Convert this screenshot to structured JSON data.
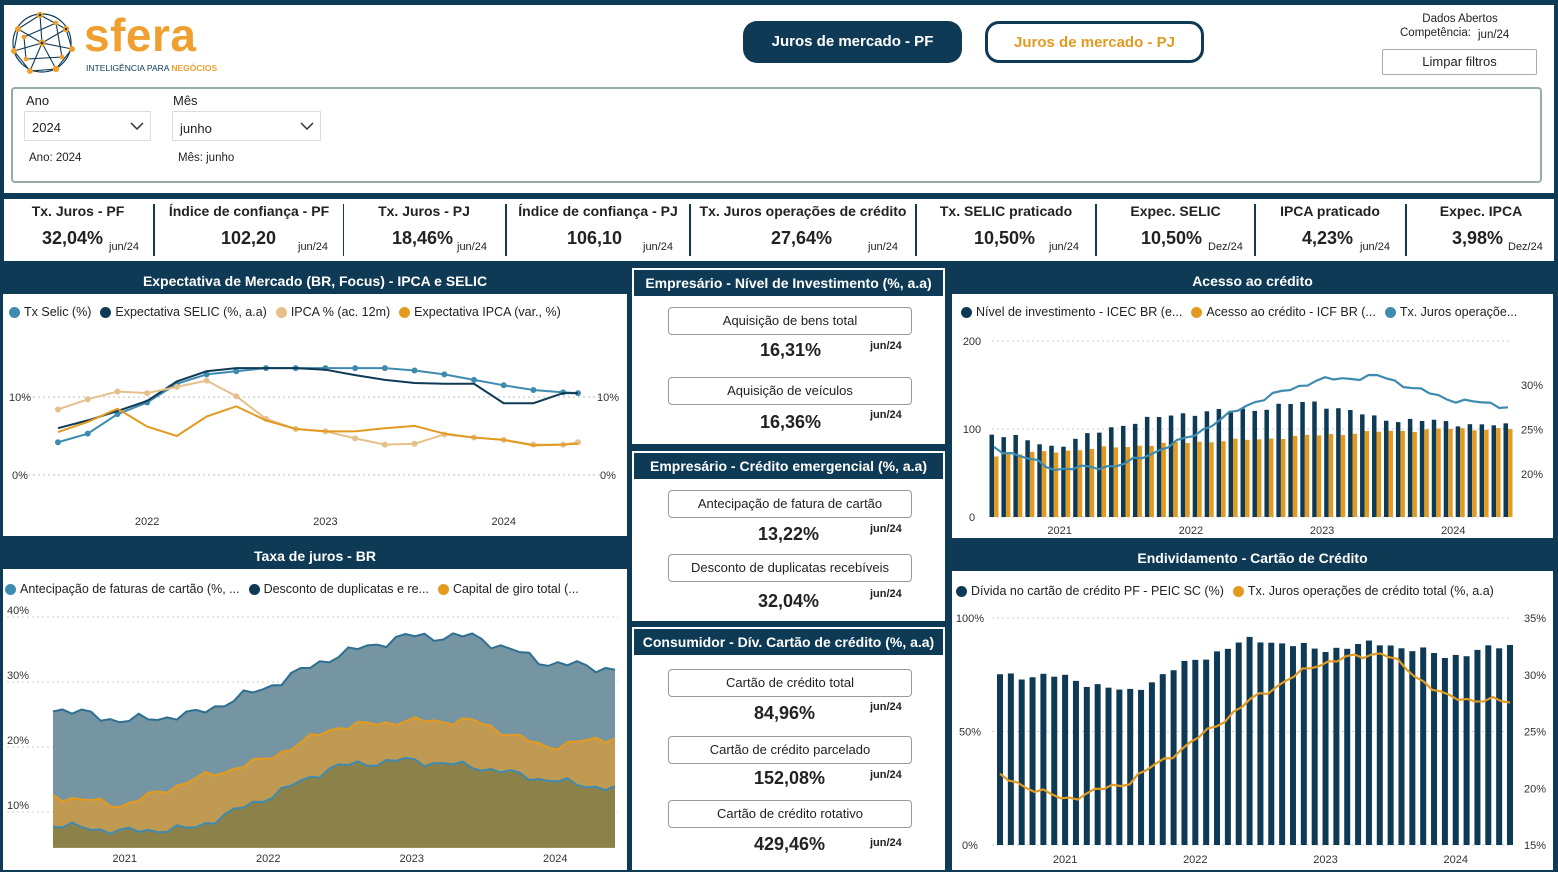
{
  "brand": {
    "name": "sfera",
    "tagline_a": "INTELIGÊNCIA PARA ",
    "tagline_b": "NEGÓCIOS"
  },
  "nav": {
    "pf": "Juros de mercado - PF",
    "pj": "Juros de mercado - PJ"
  },
  "info": {
    "source": "Dados Abertos",
    "competence_label": "Competência:",
    "competence_value": "jun/24",
    "clear": "Limpar filtros"
  },
  "filters": {
    "year_label": "Ano",
    "year_value": "2024",
    "year_note": "Ano: 2024",
    "month_label": "Mês",
    "month_value": "junho",
    "month_note": "Mês: junho"
  },
  "kpis": [
    {
      "title": "Tx. Juros - PF",
      "value": "32,04%",
      "date": "jun/24"
    },
    {
      "title": "Índice de confiança - PF",
      "value": "102,20",
      "date": "jun/24"
    },
    {
      "title": "Tx. Juros - PJ",
      "value": "18,46%",
      "date": "jun/24"
    },
    {
      "title": "Índice de confiança - PJ",
      "value": "106,10",
      "date": "jun/24"
    },
    {
      "title": "Tx. Juros operações de crédito",
      "value": "27,64%",
      "date": "jun/24"
    },
    {
      "title": "Tx. SELIC praticado",
      "value": "10,50%",
      "date": "jun/24"
    },
    {
      "title": "Expec. SELIC",
      "value": "10,50%",
      "date": "Dez/24"
    },
    {
      "title": "IPCA praticado",
      "value": "4,23%",
      "date": "jun/24"
    },
    {
      "title": "Expec. IPCA",
      "value": "3,98%",
      "date": "Dez/24"
    }
  ],
  "middle": {
    "invest": {
      "title": "Empresário - Nível de Investimento (%, a.a)",
      "cards": [
        {
          "label": "Aquisição de bens total",
          "value": "16,31%",
          "date": "jun/24"
        },
        {
          "label": "Aquisição de veículos",
          "value": "16,36%",
          "date": "jun/24"
        }
      ]
    },
    "emerg": {
      "title": "Empresário - Crédito emergencial (%, a.a)",
      "cards": [
        {
          "label": "Antecipação de fatura de cartão",
          "value": "13,22%",
          "date": "jun/24"
        },
        {
          "label": "Desconto de duplicatas recebíveis",
          "value": "32,04%",
          "date": "jun/24"
        }
      ]
    },
    "cons": {
      "title": "Consumidor - Dív. Cartão de crédito (%, a.a)",
      "cards": [
        {
          "label": "Cartão de crédito total",
          "value": "84,96%",
          "date": "jun/24"
        },
        {
          "label": "Cartão de crédito parcelado",
          "value": "152,08%",
          "date": "jun/24"
        },
        {
          "label": "Cartão de crédito rotativo",
          "value": "429,46%",
          "date": "jun/24"
        }
      ]
    }
  },
  "colors": {
    "navy": "#0e3a55",
    "teal": "#3f8bb0",
    "gold": "#e39a21",
    "tan": "#e5c08a",
    "orange": "#f0a030"
  },
  "chart_data": [
    {
      "type": "line",
      "title": "Expectativa de Mercado (BR, Focus) - IPCA e SELIC",
      "x": [
        "2021-07",
        "2021-09",
        "2021-11",
        "2022-01",
        "2022-03",
        "2022-05",
        "2022-07",
        "2022-09",
        "2022-11",
        "2023-01",
        "2023-03",
        "2023-05",
        "2023-07",
        "2023-09",
        "2023-11",
        "2024-01",
        "2024-03",
        "2024-05",
        "2024-06"
      ],
      "xticks": [
        "2022",
        "2023",
        "2024"
      ],
      "yticks": [
        "0%",
        "10%"
      ],
      "series": [
        {
          "name": "Tx Selic (%)",
          "values": [
            4.2,
            5.3,
            7.8,
            9.3,
            11.7,
            12.9,
            13.3,
            13.7,
            13.7,
            13.7,
            13.7,
            13.7,
            13.4,
            12.9,
            12.2,
            11.5,
            10.9,
            10.6,
            10.5
          ]
        },
        {
          "name": "Expectativa SELIC (%, a.a)",
          "values": [
            6.0,
            7.0,
            8.2,
            9.5,
            12.0,
            13.3,
            13.7,
            13.7,
            13.7,
            13.5,
            12.8,
            12.2,
            11.8,
            11.7,
            11.7,
            9.2,
            9.2,
            10.5,
            10.5
          ]
        },
        {
          "name": "IPCA % (ac. 12m)",
          "values": [
            8.4,
            9.7,
            10.7,
            10.5,
            11.3,
            12.1,
            10.1,
            7.2,
            5.9,
            5.6,
            4.7,
            3.9,
            4.0,
            5.2,
            4.8,
            4.5,
            3.9,
            3.9,
            4.2
          ]
        },
        {
          "name": "Expectativa IPCA (var., %)",
          "values": [
            5.5,
            6.8,
            8.5,
            6.2,
            5.0,
            7.5,
            8.8,
            7.0,
            5.9,
            5.6,
            5.6,
            6.0,
            6.3,
            5.3,
            4.8,
            4.5,
            3.8,
            3.9,
            4.0
          ]
        }
      ]
    },
    {
      "type": "area",
      "title": "Taxa de juros - BR",
      "x": [
        "2020-07",
        "2021-01",
        "2021-07",
        "2022-01",
        "2022-07",
        "2023-01",
        "2023-07",
        "2024-01",
        "2024-06"
      ],
      "xticks": [
        "2021",
        "2022",
        "2023",
        "2024"
      ],
      "yticks": [
        "10%",
        "20%",
        "30%",
        "40%"
      ],
      "series": [
        {
          "name": "Antecipação de faturas de cartão (%, ...",
          "values": [
            8,
            7,
            7.5,
            12,
            17,
            18,
            17,
            15,
            13.5
          ]
        },
        {
          "name": "Desconto de duplicatas e re...",
          "values": [
            26,
            24,
            25,
            29,
            34,
            37,
            37,
            33,
            32
          ]
        },
        {
          "name": "Capital de giro total (...",
          "values": [
            12.5,
            11,
            15,
            18,
            23,
            24,
            24,
            20,
            21.5
          ]
        }
      ]
    },
    {
      "type": "bar+line",
      "title": "Acesso ao crédito",
      "x": [
        "2020-07",
        "2021-01",
        "2021-07",
        "2022-01",
        "2022-07",
        "2023-01",
        "2023-07",
        "2024-01",
        "2024-06"
      ],
      "xticks": [
        "2021",
        "2022",
        "2023",
        "2024"
      ],
      "yticks_left": [
        "0",
        "100",
        "200"
      ],
      "yticks_right": [
        "20%",
        "25%",
        "30%"
      ],
      "series": [
        {
          "name": "Nível de investimento - ICEC BR (e...",
          "values": [
            95,
            80,
            105,
            118,
            122,
            131,
            112,
            108,
            103
          ]
        },
        {
          "name": "Acesso ao crédito - ICF BR (...",
          "values": [
            70,
            75,
            80,
            85,
            88,
            93,
            97,
            100,
            100
          ]
        },
        {
          "name": "Tx. Juros operaçõe...",
          "values": [
            23,
            20.5,
            21,
            24,
            28,
            30.5,
            31,
            28.5,
            27.6
          ]
        }
      ]
    },
    {
      "type": "bar+line",
      "title": "Endividamento - Cartão de Crédito",
      "x": [
        "2020-07",
        "2021-01",
        "2021-07",
        "2022-01",
        "2022-07",
        "2023-01",
        "2023-07",
        "2024-01",
        "2024-06"
      ],
      "xticks": [
        "2021",
        "2022",
        "2023",
        "2024"
      ],
      "yticks_left": [
        "0%",
        "50%",
        "100%"
      ],
      "yticks_right": [
        "15%",
        "20%",
        "25%",
        "30%",
        "35%"
      ],
      "series": [
        {
          "name": "Dívida no cartão de crédito PF - PEIC SC (%)",
          "values": [
            75,
            74,
            67,
            81,
            91,
            86,
            89,
            83,
            88
          ]
        },
        {
          "name": "Tx. Juros operações de crédito total (%, a.a)",
          "values": [
            21,
            19,
            20.5,
            24,
            28,
            31,
            32,
            28,
            27.6
          ]
        }
      ]
    }
  ]
}
